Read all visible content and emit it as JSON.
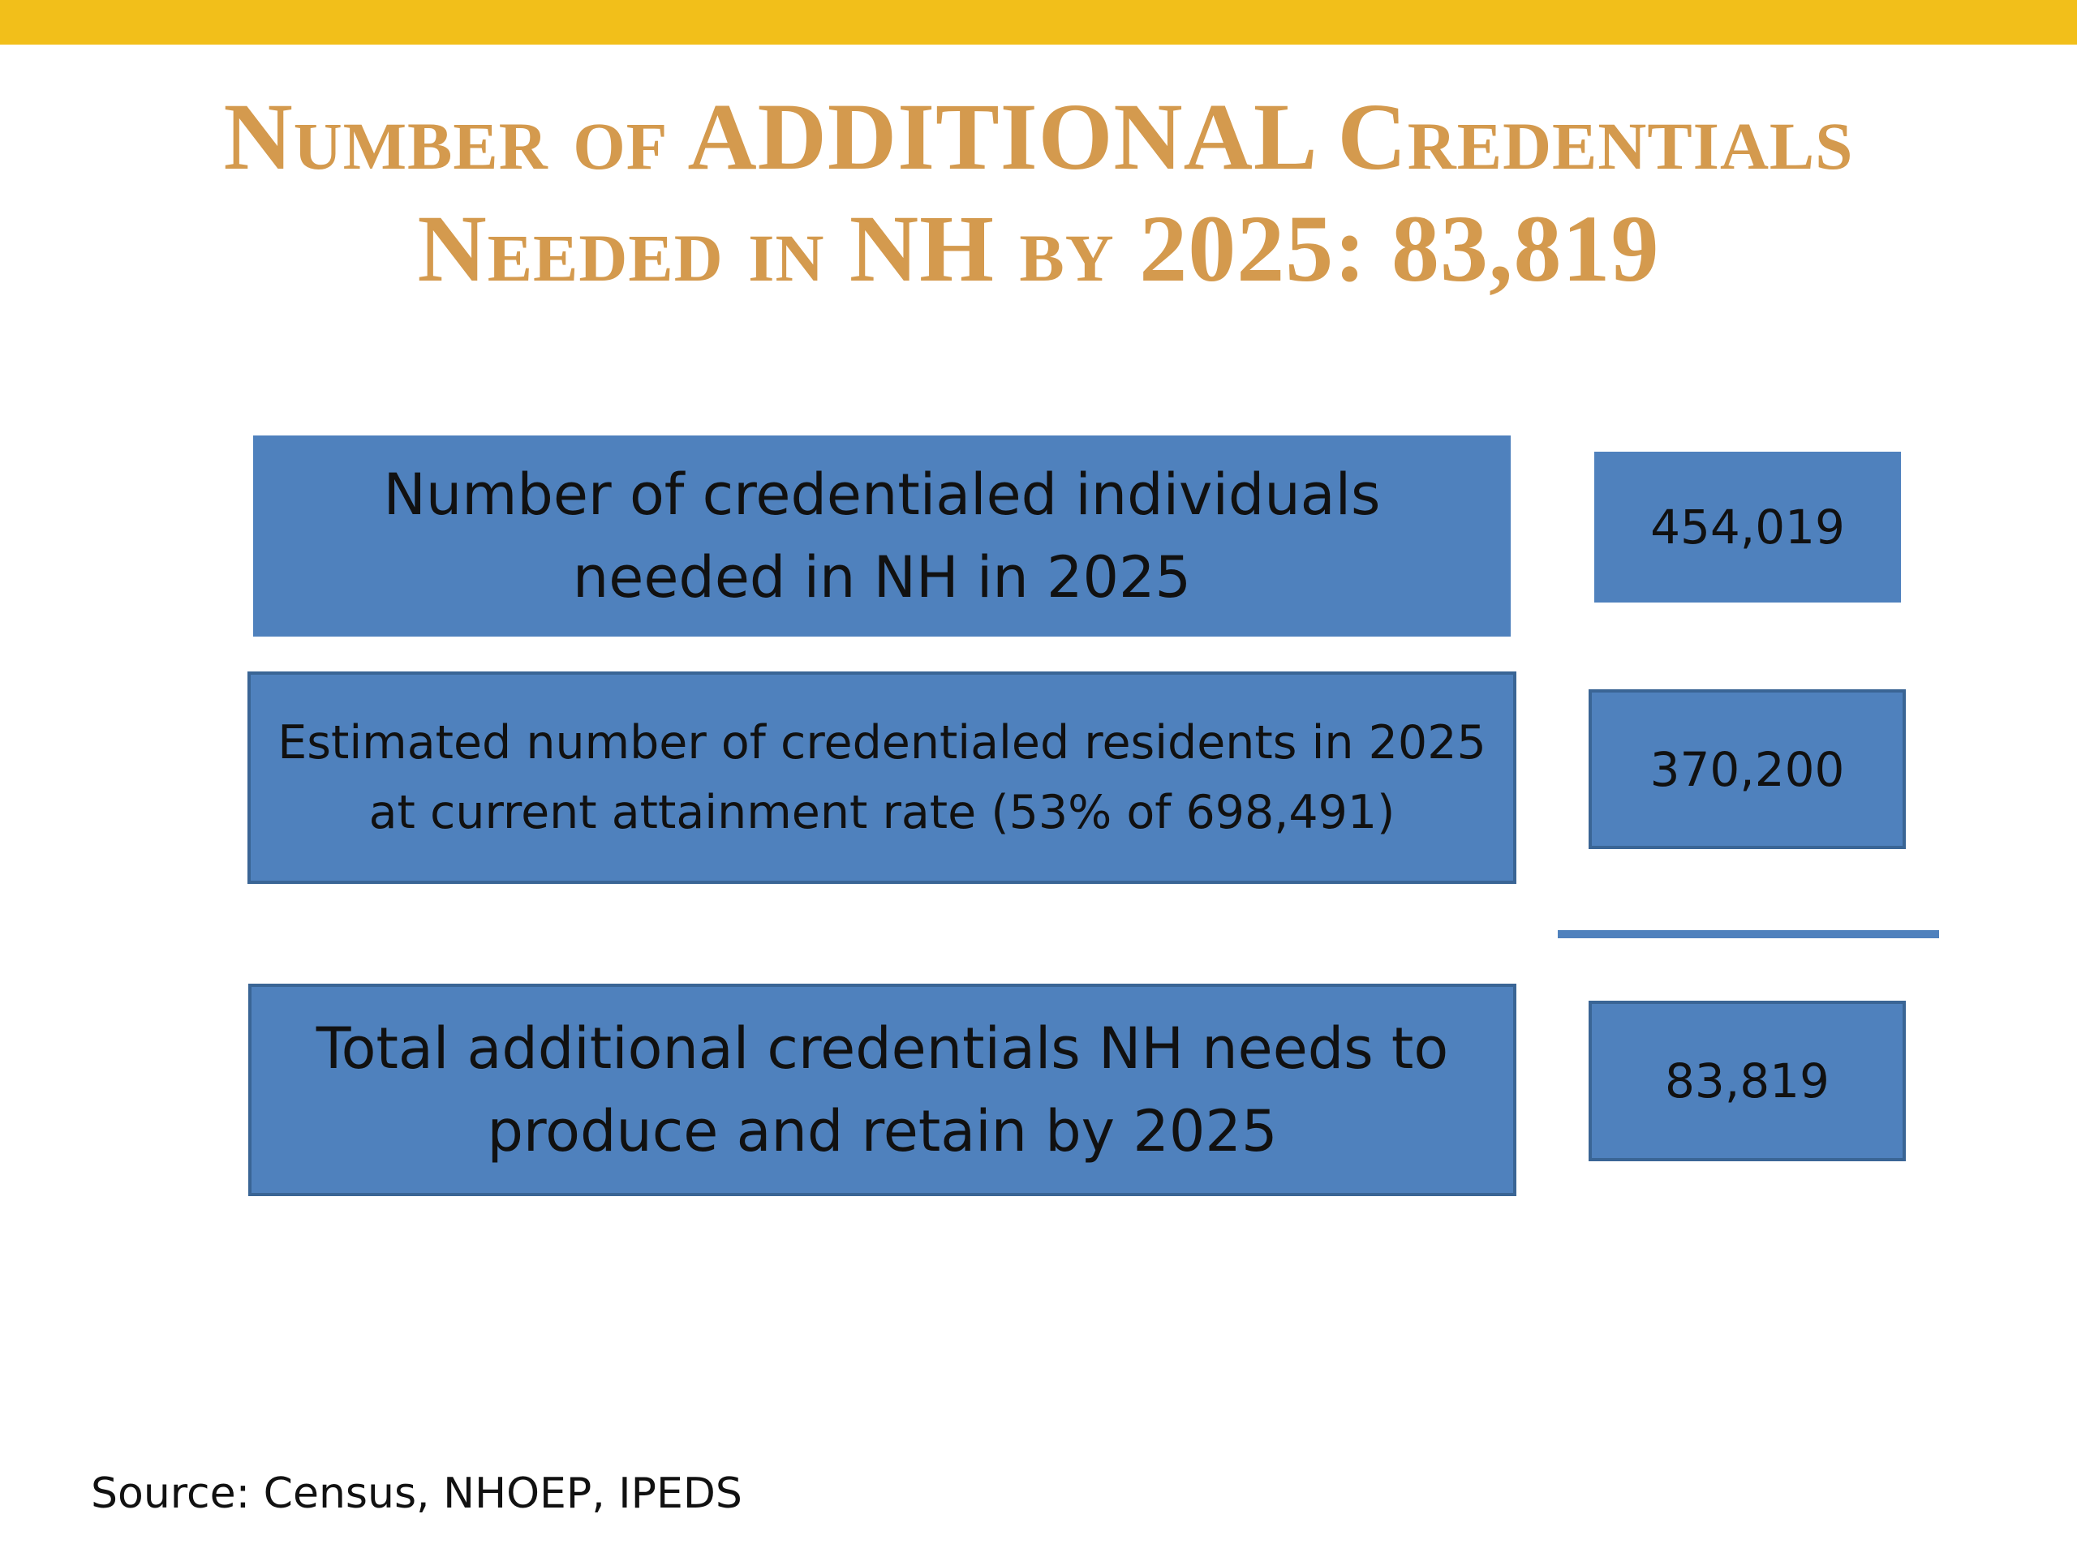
{
  "title": {
    "line1": "Number of ADDITIONAL Credentials",
    "line2": "Needed in NH by 2025: 83,819"
  },
  "rows": [
    {
      "label": "Number of credentialed individuals needed in NH in 2025",
      "value": "454,019"
    },
    {
      "label_line1": "Estimated number of credentialed residents in 2025",
      "label_line2": "at current attainment rate (53% of 698,491)",
      "value": "370,200"
    },
    {
      "label": "Total additional credentials NH needs to produce and retain by 2025",
      "value": "83,819"
    }
  ],
  "source": "Source: Census, NHOEP, IPEDS",
  "colors": {
    "top_bar": "#F2BF1A",
    "title": "#D49A4E",
    "box_fill": "#4F81BD",
    "box_border": "#3A6595"
  }
}
